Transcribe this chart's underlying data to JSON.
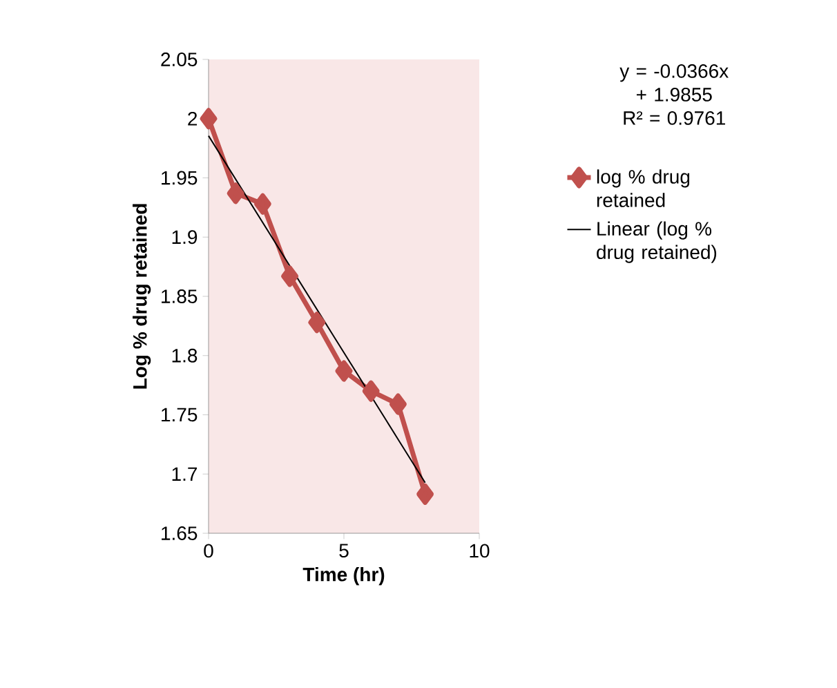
{
  "chart_data": {
    "type": "line",
    "xlabel": "Time (hr)",
    "ylabel": "Log % drug retained",
    "annotations": [
      "y = -0.0366x + 1.9855",
      "R² = 0.9761"
    ],
    "series": [
      {
        "name": "log % drug retained",
        "color": "#c0504d",
        "x": [
          0,
          1,
          2,
          3,
          4,
          5,
          6,
          7,
          8
        ],
        "values": [
          2.0,
          1.937,
          1.928,
          1.867,
          1.828,
          1.787,
          1.77,
          1.759,
          1.683
        ],
        "marker": "diamond"
      },
      {
        "name": "Linear (log % drug retained)",
        "color": "#000000",
        "x": [
          0,
          8
        ],
        "values": [
          1.9855,
          1.6927
        ],
        "marker": "none"
      }
    ],
    "xlim": [
      0,
      10
    ],
    "xticks": [
      0,
      5,
      10
    ],
    "ylim": [
      1.65,
      2.05
    ],
    "yticks": [
      1.65,
      1.7,
      1.75,
      1.8,
      1.85,
      1.9,
      1.95,
      2,
      2.05
    ],
    "grid": false,
    "legend": "right",
    "line_style": "solid"
  }
}
